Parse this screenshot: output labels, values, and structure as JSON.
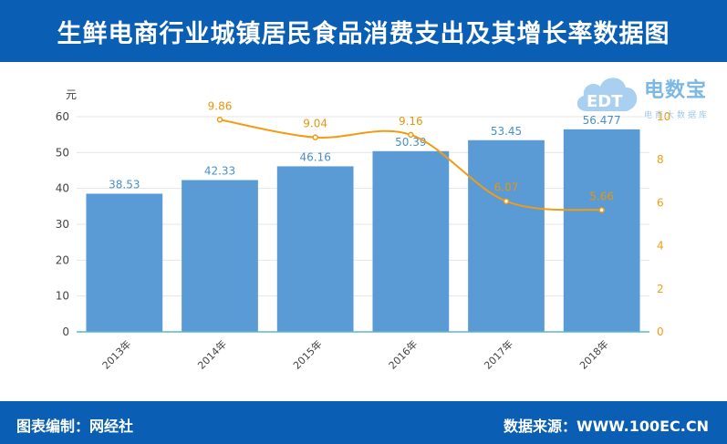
{
  "header": {
    "title": "生鲜电商行业城镇居民食品消费支出及其增长率数据图"
  },
  "footer": {
    "left": "图表编制：网经社",
    "right": "数据来源：WWW.100EC.CN"
  },
  "logo": {
    "text": "电数宝",
    "sub": "电商大数据库",
    "mark": "EDT"
  },
  "colors": {
    "bar": "#5b9bd5",
    "line": "#f39c12",
    "brand": "#0a5fb4"
  },
  "chart_data": {
    "type": "bar",
    "categories": [
      "2013年",
      "2014年",
      "2015年",
      "2016年",
      "2017年",
      "2018年"
    ],
    "series": [
      {
        "values": [
          38.53,
          42.33,
          46.16,
          50.39,
          53.45,
          56.477
        ],
        "labels": [
          "38.53",
          "42.33",
          "46.16",
          "50.39",
          "53.45",
          "56.477"
        ],
        "axis": "left",
        "kind": "bar"
      },
      {
        "values": [
          null,
          9.86,
          9.04,
          9.16,
          6.07,
          5.66
        ],
        "labels": [
          "",
          "9.86",
          "9.04",
          "9.16",
          "6.07",
          "5.66"
        ],
        "axis": "right",
        "kind": "line"
      }
    ],
    "ylabel": "元",
    "ylim": [
      0,
      60
    ],
    "yticks": [
      0,
      10,
      20,
      30,
      40,
      50,
      60
    ],
    "y2lim": [
      0,
      10
    ],
    "y2ticks": [
      0,
      2,
      4,
      6,
      8,
      10
    ],
    "grid": true
  }
}
